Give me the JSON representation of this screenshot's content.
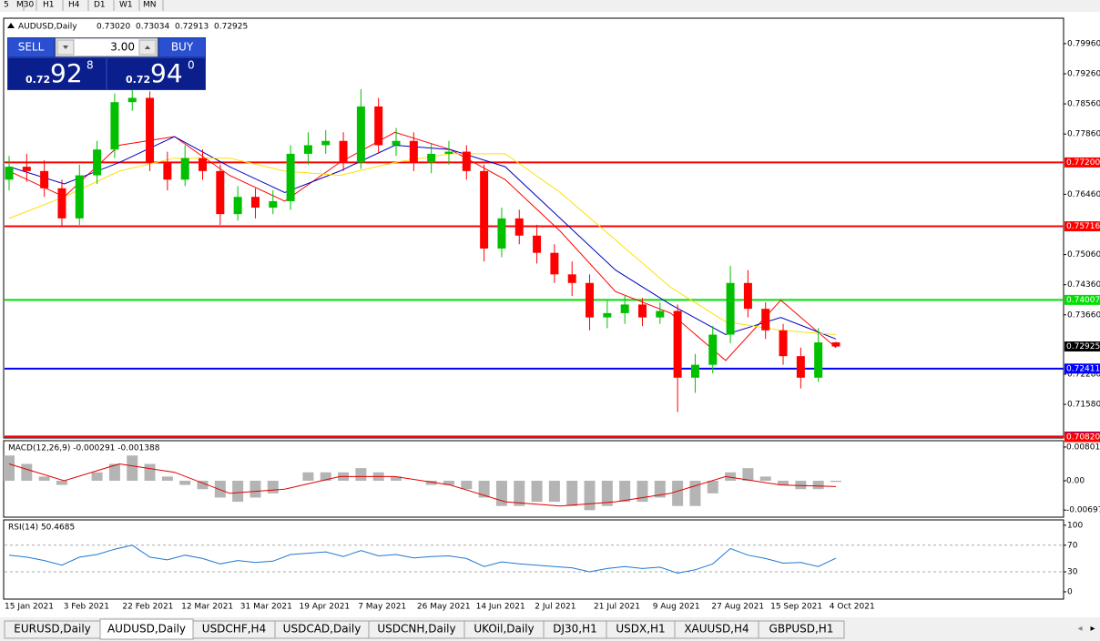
{
  "toolbar": {
    "timeframes": [
      "5",
      "M30",
      "H1",
      "H4",
      "D1",
      "W1",
      "MN"
    ]
  },
  "trade_panel": {
    "sell_label": "SELL",
    "lot": "3.00",
    "buy_label": "BUY",
    "bid": {
      "prefix": "0.72",
      "big": "92",
      "small": "8"
    },
    "ask": {
      "prefix": "0.72",
      "big": "94",
      "small": "0"
    }
  },
  "chart_data": [
    {
      "type": "candlestick",
      "title": "AUDUSD,Daily",
      "ohlc_labels": [
        "0.73020",
        "0.73034",
        "0.72913",
        "0.72925"
      ],
      "up_color": "#00c000",
      "down_color": "#ff0000",
      "open": [
        0.768,
        0.771,
        0.77,
        0.766,
        0.759,
        0.769,
        0.775,
        0.786,
        0.787,
        0.772,
        0.768,
        0.773,
        0.77,
        0.76,
        0.764,
        0.7615,
        0.763,
        0.774,
        0.776,
        0.777,
        0.772,
        0.785,
        0.776,
        0.777,
        0.772,
        0.774,
        0.7745,
        0.77,
        0.752,
        0.759,
        0.755,
        0.751,
        0.746,
        0.744,
        0.736,
        0.737,
        0.739,
        0.736,
        0.7375,
        0.722,
        0.725,
        0.732,
        0.744,
        0.738,
        0.733,
        0.727,
        0.722,
        0.7302
      ],
      "high": [
        0.7735,
        0.774,
        0.7725,
        0.768,
        0.7715,
        0.777,
        0.788,
        0.79,
        0.7885,
        0.7745,
        0.776,
        0.775,
        0.7715,
        0.7665,
        0.766,
        0.7655,
        0.776,
        0.779,
        0.7795,
        0.779,
        0.789,
        0.787,
        0.78,
        0.779,
        0.7765,
        0.777,
        0.776,
        0.7715,
        0.7615,
        0.761,
        0.7575,
        0.753,
        0.749,
        0.746,
        0.74,
        0.741,
        0.7405,
        0.7395,
        0.739,
        0.7275,
        0.734,
        0.748,
        0.747,
        0.7395,
        0.7345,
        0.729,
        0.7335,
        0.73034
      ],
      "low": [
        0.7655,
        0.7675,
        0.764,
        0.757,
        0.7575,
        0.767,
        0.773,
        0.784,
        0.77,
        0.7655,
        0.7665,
        0.768,
        0.7575,
        0.7585,
        0.759,
        0.76,
        0.761,
        0.7715,
        0.774,
        0.77,
        0.7705,
        0.774,
        0.7735,
        0.77,
        0.7695,
        0.7715,
        0.768,
        0.749,
        0.75,
        0.753,
        0.7485,
        0.744,
        0.741,
        0.733,
        0.7335,
        0.7345,
        0.734,
        0.7345,
        0.714,
        0.7185,
        0.723,
        0.73,
        0.736,
        0.731,
        0.725,
        0.7195,
        0.721,
        0.72913
      ],
      "close": [
        0.771,
        0.77,
        0.766,
        0.759,
        0.769,
        0.775,
        0.786,
        0.787,
        0.772,
        0.768,
        0.773,
        0.77,
        0.76,
        0.764,
        0.7615,
        0.763,
        0.774,
        0.776,
        0.777,
        0.772,
        0.785,
        0.776,
        0.777,
        0.772,
        0.774,
        0.7745,
        0.77,
        0.752,
        0.759,
        0.755,
        0.751,
        0.746,
        0.744,
        0.736,
        0.737,
        0.739,
        0.736,
        0.7375,
        0.722,
        0.725,
        0.732,
        0.744,
        0.738,
        0.733,
        0.727,
        0.722,
        0.7302,
        0.72925
      ],
      "series": [
        {
          "color": "#ff0000",
          "values": [
            0.77,
            0.764,
            0.776,
            0.778,
            0.769,
            0.763,
            0.772,
            0.779,
            0.775,
            0.768,
            0.756,
            0.742,
            0.737,
            0.726,
            0.74,
            0.729
          ]
        },
        {
          "color": "#0000c0",
          "values": [
            0.771,
            0.767,
            0.772,
            0.778,
            0.771,
            0.765,
            0.77,
            0.776,
            0.775,
            0.771,
            0.759,
            0.747,
            0.739,
            0.732,
            0.736,
            0.731
          ]
        },
        {
          "color": "#ffe000",
          "values": [
            0.759,
            0.764,
            0.77,
            0.773,
            0.773,
            0.77,
            0.769,
            0.772,
            0.774,
            0.774,
            0.765,
            0.754,
            0.743,
            0.735,
            0.733,
            0.732
          ]
        }
      ],
      "ylim": [
        0.708,
        0.8055
      ],
      "yticks": [
        {
          "value": 0.7996,
          "label": "0.79960"
        },
        {
          "value": 0.7926,
          "label": "0.79260"
        },
        {
          "value": 0.7856,
          "label": "0.78560"
        },
        {
          "value": 0.7786,
          "label": "0.77860"
        },
        {
          "value": 0.7646,
          "label": "0.76460"
        },
        {
          "value": 0.7506,
          "label": "0.75060"
        },
        {
          "value": 0.7436,
          "label": "0.74360"
        },
        {
          "value": 0.7366,
          "label": "0.73660"
        },
        {
          "value": 0.7228,
          "label": "0.72280"
        },
        {
          "value": 0.7158,
          "label": "0.71580"
        }
      ],
      "hlines": [
        {
          "value": 0.772,
          "label": "0.77200",
          "color": "#ff0000"
        },
        {
          "value": 0.75716,
          "label": "0.75716",
          "color": "#ff0000"
        },
        {
          "value": 0.74007,
          "label": "0.74007",
          "color": "#00e000"
        },
        {
          "value": 0.72411,
          "label": "0.72411",
          "color": "#0000ff"
        },
        {
          "value": 0.70831,
          "label": "0.70831",
          "color": "#0000ff"
        },
        {
          "value": 0.7082,
          "label": "0.70820",
          "color": "#ff0000"
        }
      ],
      "last_price": {
        "value": 0.72925,
        "label": "0.72925"
      },
      "date_labels": [
        "15 Jan 2021",
        "3 Feb 2021",
        "22 Feb 2021",
        "12 Mar 2021",
        "31 Mar 2021",
        "19 Apr 2021",
        "7 May 2021",
        "26 May 2021",
        "14 Jun 2021",
        "2 Jul 2021",
        "21 Jul 2021",
        "9 Aug 2021",
        "27 Aug 2021",
        "15 Sep 2021",
        "4 Oct 2021"
      ]
    },
    {
      "type": "macd",
      "title": "MACD(12,26,9) -0.000291 -0.001388",
      "histogram_color": "#b4b4b4",
      "signal_color": "#e00000",
      "histogram": [
        0.006,
        0.004,
        0.001,
        -0.001,
        0,
        0.002,
        0.004,
        0.006,
        0.004,
        0.001,
        -0.001,
        -0.002,
        -0.004,
        -0.005,
        -0.004,
        -0.003,
        0,
        0.002,
        0.002,
        0.002,
        0.003,
        0.002,
        0.001,
        0,
        -0.001,
        -0.001,
        -0.002,
        -0.004,
        -0.006,
        -0.006,
        -0.005,
        -0.005,
        -0.006,
        -0.007,
        -0.006,
        -0.005,
        -0.005,
        -0.004,
        -0.006,
        -0.006,
        -0.003,
        0.002,
        0.003,
        0.001,
        -0.001,
        -0.002,
        -0.002,
        -0.000291
      ],
      "signal": [
        0.004,
        0,
        0.004,
        0.002,
        -0.003,
        -0.002,
        0.001,
        0.001,
        -0.001,
        -0.005,
        -0.006,
        -0.005,
        -0.003,
        0.001,
        -0.001,
        -0.001388
      ],
      "ylim": [
        -0.00866,
        0.00952
      ],
      "yticks": [
        0.008014,
        {
          "value": 0,
          "label": "0.00"
        },
        -0.00697
      ]
    },
    {
      "type": "line",
      "title": "RSI(14) 50.4685",
      "color": "#1e78d2",
      "values": [
        55,
        52,
        47,
        40,
        52,
        56,
        64,
        70,
        52,
        48,
        55,
        50,
        42,
        47,
        44,
        46,
        56,
        58,
        60,
        53,
        62,
        54,
        56,
        51,
        53,
        54,
        50,
        38,
        45,
        42,
        40,
        38,
        36,
        30,
        35,
        38,
        35,
        37,
        28,
        33,
        42,
        65,
        55,
        50,
        43,
        44,
        38,
        50.4685
      ],
      "ylim": [
        -11,
        108
      ],
      "yticks": [
        100,
        70,
        30,
        0
      ],
      "levels": [
        70,
        30
      ]
    }
  ],
  "tabs": [
    {
      "label": "EURUSD,Daily",
      "active": false
    },
    {
      "label": "AUDUSD,Daily",
      "active": true
    },
    {
      "label": "USDCHF,H4",
      "active": false
    },
    {
      "label": "USDCAD,Daily",
      "active": false
    },
    {
      "label": "USDCNH,Daily",
      "active": false
    },
    {
      "label": "UKOil,Daily",
      "active": false
    },
    {
      "label": "DJ30,H1",
      "active": false
    },
    {
      "label": "USDX,H1",
      "active": false
    },
    {
      "label": "XAUUSD,H4",
      "active": false
    },
    {
      "label": "GBPUSD,H1",
      "active": false
    }
  ]
}
